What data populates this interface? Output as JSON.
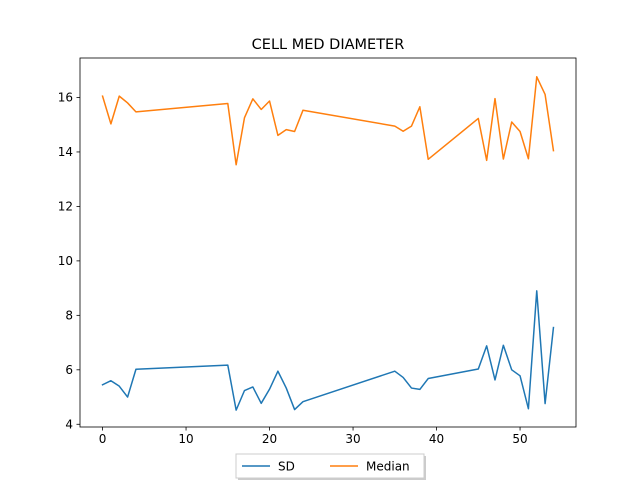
{
  "chart_data": {
    "type": "line",
    "title": "CELL MED DIAMETER",
    "xlabel": "",
    "ylabel": "",
    "xlim": [
      -2.7,
      56.7
    ],
    "ylim": [
      3.9,
      17.45
    ],
    "xticks": [
      0,
      10,
      20,
      30,
      40,
      50
    ],
    "yticks": [
      4,
      6,
      8,
      10,
      12,
      14,
      16
    ],
    "grid": false,
    "legend_position": "bottom-center",
    "x": [
      0,
      1,
      2,
      3,
      4,
      15,
      16,
      17,
      18,
      19,
      20,
      21,
      22,
      23,
      24,
      35,
      36,
      37,
      38,
      39,
      45,
      46,
      47,
      48,
      49,
      50,
      51,
      52,
      53,
      54
    ],
    "series": [
      {
        "name": "SD",
        "color": "#1f77b4",
        "values": [
          5.45,
          5.6,
          5.4,
          5.0,
          6.02,
          6.17,
          4.52,
          5.24,
          5.37,
          4.77,
          5.29,
          5.95,
          5.33,
          4.54,
          4.83,
          5.95,
          5.72,
          5.33,
          5.28,
          5.68,
          6.03,
          6.88,
          5.63,
          6.9,
          6.0,
          5.78,
          4.57,
          8.9,
          4.76,
          7.55
        ]
      },
      {
        "name": "Median",
        "color": "#ff7f0e",
        "values": [
          16.05,
          15.03,
          16.05,
          15.8,
          15.47,
          15.78,
          13.53,
          15.26,
          15.95,
          15.56,
          15.87,
          14.61,
          14.82,
          14.75,
          15.53,
          14.95,
          14.76,
          14.95,
          15.66,
          13.73,
          15.23,
          13.69,
          15.96,
          13.74,
          15.1,
          14.75,
          13.75,
          16.76,
          16.11,
          14.05
        ]
      }
    ]
  }
}
